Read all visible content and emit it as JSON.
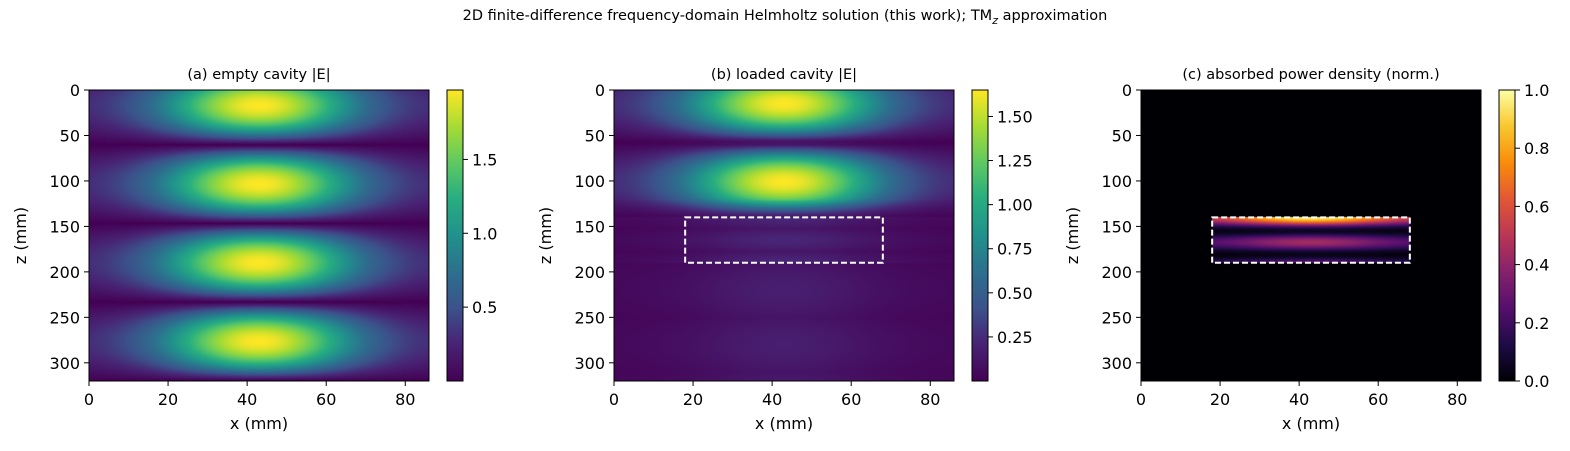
{
  "figure": {
    "suptitle_prefix": "2D finite-difference frequency-domain Helmholtz solution (this work); TM",
    "suptitle_sub": "z",
    "suptitle_suffix": " approximation"
  },
  "chart_data": [
    {
      "type": "heatmap",
      "title": "(a) empty cavity |E|",
      "xlabel": "x (mm)",
      "ylabel": "z (mm)",
      "xlim": [
        0,
        86
      ],
      "ylim": [
        320,
        0
      ],
      "xticks": [
        0,
        20,
        40,
        60,
        80
      ],
      "yticks": [
        0,
        50,
        100,
        150,
        200,
        250,
        300
      ],
      "colormap": "viridis",
      "colorbar": {
        "min": 0.0,
        "max": 1.97,
        "ticks": [
          0.5,
          1.0,
          1.5
        ],
        "tick_labels": [
          "0.5",
          "1.0",
          "1.5"
        ]
      },
      "field": {
        "model": "standing-wave",
        "antinodes_z": [
          17,
          102,
          189,
          276
        ],
        "nodes_z": [
          60,
          146,
          233
        ],
        "x_peak": 43,
        "peak": 1.97
      },
      "load_box": null
    },
    {
      "type": "heatmap",
      "title": "(b) loaded cavity |E|",
      "xlabel": "x (mm)",
      "ylabel": "z (mm)",
      "xlim": [
        0,
        86
      ],
      "ylim": [
        320,
        0
      ],
      "xticks": [
        0,
        20,
        40,
        60,
        80
      ],
      "yticks": [
        0,
        50,
        100,
        150,
        200,
        250,
        300
      ],
      "colormap": "viridis",
      "colorbar": {
        "min": 0.0,
        "max": 1.65,
        "ticks": [
          0.25,
          0.5,
          0.75,
          1.0,
          1.25,
          1.5
        ],
        "tick_labels": [
          "0.25",
          "0.50",
          "0.75",
          "1.00",
          "1.25",
          "1.50"
        ]
      },
      "field": {
        "model": "loaded-standing-wave",
        "antinodes_z": [
          16,
          100
        ],
        "x_peak": 43,
        "peak": 1.65,
        "transmitted_level": 0.12,
        "load_z": [
          140,
          190
        ]
      },
      "load_box": {
        "x": [
          18,
          68
        ],
        "z": [
          140,
          190
        ]
      }
    },
    {
      "type": "heatmap",
      "title": "(c) absorbed power density (norm.)",
      "xlabel": "x (mm)",
      "ylabel": "z (mm)",
      "xlim": [
        0,
        86
      ],
      "ylim": [
        320,
        0
      ],
      "xticks": [
        0,
        20,
        40,
        60,
        80
      ],
      "yticks": [
        0,
        50,
        100,
        150,
        200,
        250,
        300
      ],
      "colormap": "inferno",
      "colorbar": {
        "min": 0.0,
        "max": 1.0,
        "ticks": [
          0.0,
          0.2,
          0.4,
          0.6,
          0.8,
          1.0
        ],
        "tick_labels": [
          "0.0",
          "0.2",
          "0.4",
          "0.6",
          "0.8",
          "1.0"
        ]
      },
      "field": {
        "model": "absorbed-power",
        "load_x": [
          18,
          68
        ],
        "load_z": [
          140,
          190
        ],
        "peak_z": 142,
        "peak": 1.0
      },
      "load_box": {
        "x": [
          18,
          68
        ],
        "z": [
          140,
          190
        ]
      }
    }
  ]
}
